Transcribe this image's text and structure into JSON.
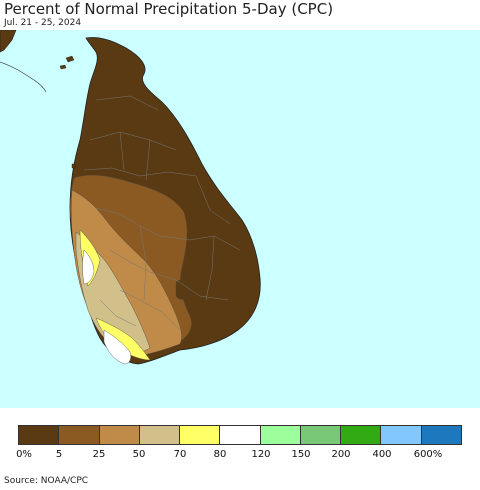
{
  "header": {
    "title": "Percent of Normal Precipitation 5-Day (CPC)",
    "date": "Jul. 21 - 25, 2024"
  },
  "map": {
    "region": "Sri Lanka",
    "ocean_color": "#ccffff",
    "land_outside_color": "#ffffff"
  },
  "legend": {
    "colors": [
      "#5a3a12",
      "#8b5a22",
      "#c08a48",
      "#d2c08a",
      "#ffff66",
      "#ffffff",
      "#9cff9c",
      "#78c878",
      "#32aa14",
      "#82c8ff",
      "#1e78be"
    ],
    "tick_labels": [
      "0%",
      "5",
      "25",
      "50",
      "70",
      "80",
      "120",
      "150",
      "200",
      "400",
      "600%"
    ]
  },
  "footer": {
    "source": "Source: NOAA/CPC"
  }
}
